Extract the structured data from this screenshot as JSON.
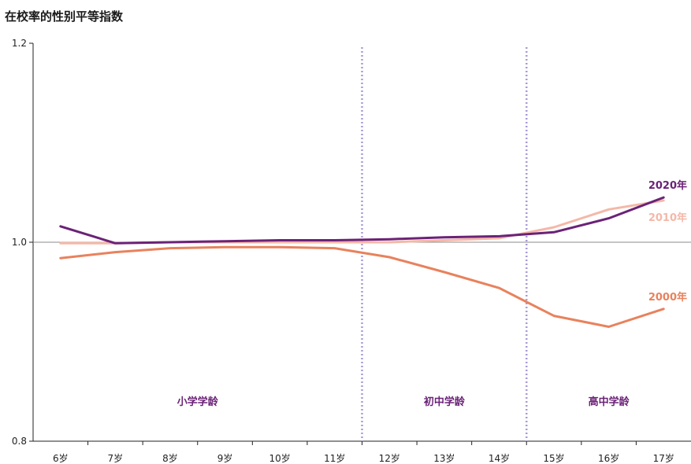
{
  "chart_data": {
    "type": "line",
    "title": "在校率的性别平等指数",
    "categories": [
      "6岁",
      "7岁",
      "8岁",
      "9岁",
      "10岁",
      "11岁",
      "12岁",
      "13岁",
      "14岁",
      "15岁",
      "16岁",
      "17岁"
    ],
    "ylim": [
      0.8,
      1.2
    ],
    "yticks": [
      "0.8",
      "1.0",
      "1.2"
    ],
    "reference_line": 1.0,
    "dividers_after": [
      "11岁",
      "14岁"
    ],
    "regions": [
      {
        "label": "小学学龄",
        "from": "6岁",
        "to": "11岁"
      },
      {
        "label": "初中学龄",
        "from": "12岁",
        "to": "14岁"
      },
      {
        "label": "高中学龄",
        "from": "15岁",
        "to": "17岁"
      }
    ],
    "series": [
      {
        "name": "2000年",
        "color": "#e8825d",
        "values": [
          0.984,
          0.99,
          0.994,
          0.995,
          0.995,
          0.994,
          0.985,
          0.97,
          0.954,
          0.926,
          0.915,
          0.933
        ]
      },
      {
        "name": "2010年",
        "color": "#f4b8a8",
        "values": [
          0.999,
          0.999,
          1.0,
          1.0,
          1.0,
          1.0,
          1.0,
          1.002,
          1.004,
          1.015,
          1.033,
          1.042
        ]
      },
      {
        "name": "2020年",
        "color": "#6b2277",
        "values": [
          1.016,
          0.999,
          1.0,
          1.001,
          1.002,
          1.002,
          1.003,
          1.005,
          1.006,
          1.01,
          1.024,
          1.045
        ]
      }
    ],
    "grid": false
  }
}
